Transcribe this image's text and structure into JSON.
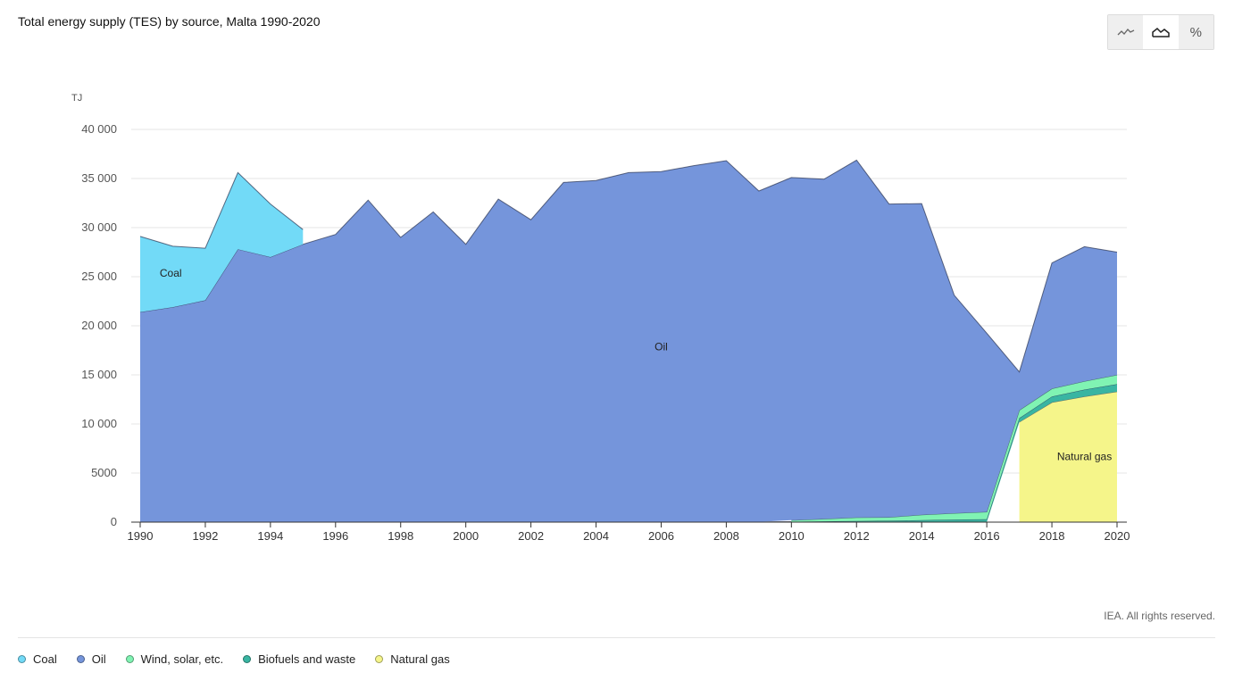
{
  "header": {
    "title": "Total energy supply (TES) by source, Malta 1990-2020"
  },
  "toggle": {
    "line_icon": "line-chart-icon",
    "area_icon": "area-chart-icon",
    "percent_label": "%",
    "active": "area"
  },
  "footer": {
    "credit": "IEA. All rights reserved."
  },
  "colors": {
    "coal": "#72daf7",
    "oil": "#7595db",
    "wind": "#80f3b3",
    "biofuels": "#39b5a2",
    "gas": "#f5f58a"
  },
  "chart_data": {
    "type": "area",
    "stacked": true,
    "title": "",
    "ylabel": "TJ",
    "xlabel": "",
    "ylim": [
      0,
      40000
    ],
    "y_ticks": [
      0,
      5000,
      10000,
      15000,
      20000,
      25000,
      30000,
      35000,
      40000
    ],
    "y_tick_labels": [
      "0",
      "5000",
      "10 000",
      "15 000",
      "20 000",
      "25 000",
      "30 000",
      "35 000",
      "40 000"
    ],
    "x_ticks": [
      1990,
      1992,
      1994,
      1996,
      1998,
      2000,
      2002,
      2004,
      2006,
      2008,
      2010,
      2012,
      2014,
      2016,
      2018,
      2020
    ],
    "grid": true,
    "legend_position": "bottom",
    "x": [
      1990,
      1991,
      1992,
      1993,
      1994,
      1995,
      1996,
      1997,
      1998,
      1999,
      2000,
      2001,
      2002,
      2003,
      2004,
      2005,
      2006,
      2007,
      2008,
      2009,
      2010,
      2011,
      2012,
      2013,
      2014,
      2015,
      2016,
      2017,
      2018,
      2019,
      2020
    ],
    "series": [
      {
        "name": "Natural gas",
        "key": "gas",
        "label": "Natural gas",
        "label_at": [
          2019,
          6300
        ],
        "values": [
          0,
          0,
          0,
          0,
          0,
          0,
          0,
          0,
          0,
          0,
          0,
          0,
          0,
          0,
          0,
          0,
          0,
          0,
          0,
          0,
          0,
          0,
          0,
          0,
          0,
          0,
          0,
          10200,
          12200,
          12800,
          13300
        ]
      },
      {
        "name": "Biofuels and waste",
        "key": "biofuels",
        "values": [
          0,
          0,
          0,
          0,
          0,
          0,
          0,
          0,
          0,
          0,
          0,
          0,
          0,
          0,
          0,
          0,
          0,
          10,
          20,
          30,
          50,
          80,
          120,
          150,
          200,
          260,
          300,
          400,
          600,
          700,
          750
        ]
      },
      {
        "name": "Wind, solar, etc.",
        "key": "wind",
        "values": [
          0,
          0,
          0,
          0,
          0,
          0,
          0,
          0,
          0,
          0,
          0,
          0,
          0,
          0,
          0,
          0,
          0,
          0,
          0,
          0,
          150,
          250,
          350,
          350,
          550,
          650,
          750,
          800,
          800,
          850,
          950
        ]
      },
      {
        "name": "Oil",
        "key": "oil",
        "label": "Oil",
        "label_at": [
          2006,
          17500
        ],
        "values": [
          21400,
          21900,
          22600,
          27800,
          27000,
          28300,
          29300,
          32800,
          29000,
          31600,
          28300,
          32900,
          30800,
          34600,
          34800,
          35600,
          35700,
          36300,
          36800,
          33700,
          34900,
          34600,
          36400,
          31900,
          31700,
          22200,
          18200,
          3900,
          12800,
          13700,
          12500
        ]
      },
      {
        "name": "Coal",
        "key": "coal",
        "label": "Coal",
        "label_at": [
          1990.6,
          25000
        ],
        "values": [
          7700,
          6200,
          5300,
          7800,
          5400,
          1500,
          0,
          0,
          0,
          0,
          0,
          0,
          0,
          0,
          0,
          0,
          0,
          0,
          0,
          0,
          0,
          0,
          0,
          0,
          0,
          0,
          0,
          0,
          0,
          0,
          0
        ]
      }
    ],
    "legend": [
      {
        "name": "Coal",
        "key": "coal"
      },
      {
        "name": "Oil",
        "key": "oil"
      },
      {
        "name": "Wind, solar, etc.",
        "key": "wind"
      },
      {
        "name": "Biofuels and waste",
        "key": "biofuels"
      },
      {
        "name": "Natural gas",
        "key": "gas"
      }
    ]
  }
}
